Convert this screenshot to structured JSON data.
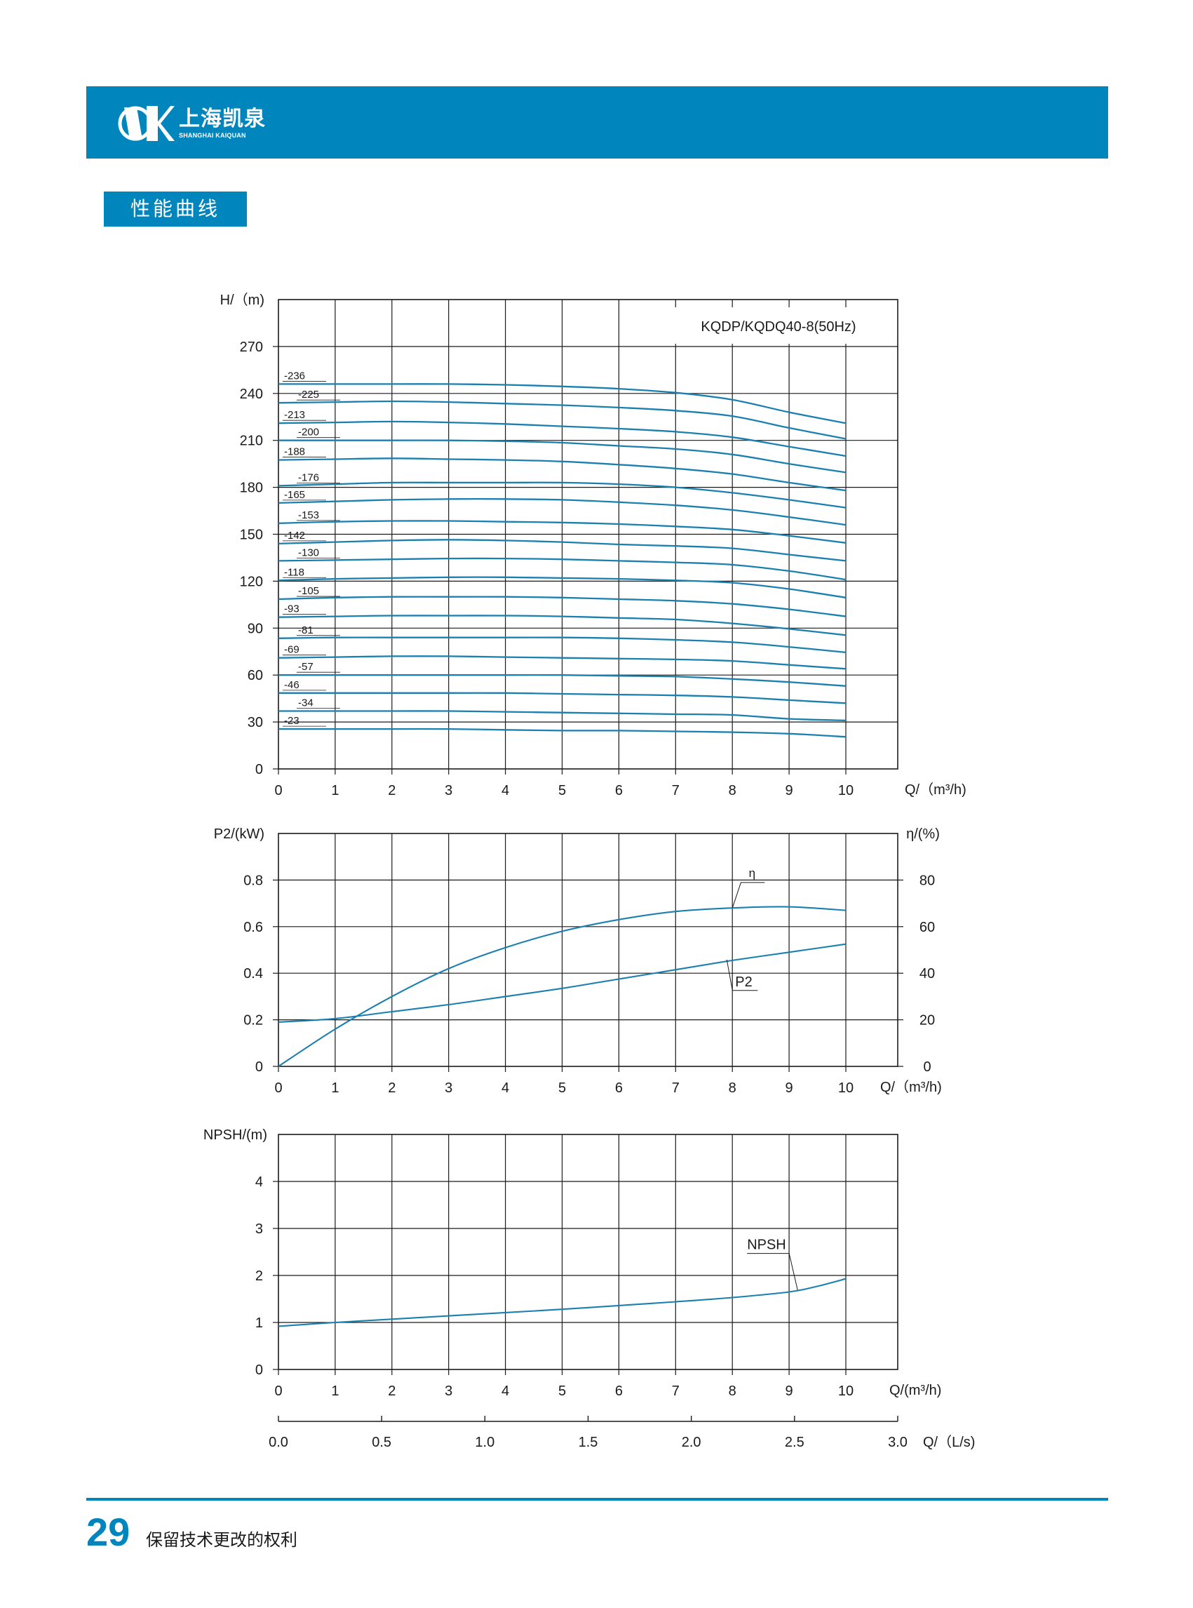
{
  "header": {
    "brand_cn": "上海凯泉",
    "brand_en": "SHANGHAI KAIQUAN",
    "bar_color": "#0085bd",
    "logo_icon": "kaiquan-logo-icon"
  },
  "section": {
    "title": "性能曲线"
  },
  "footer": {
    "page_number": "29",
    "note": "保留技术更改的权利"
  },
  "colors": {
    "accent": "#0085bd",
    "curve": "#1b7fb0",
    "grid": "#1a1a1a"
  },
  "chart_data": [
    {
      "id": "head",
      "type": "line",
      "title": "KQDP/KQDQ40-8(50Hz)",
      "ylabel": "H/（m)",
      "xlabel": "Q/（m³/h)",
      "xlim": [
        0,
        11
      ],
      "ylim": [
        0,
        300
      ],
      "xticks": [
        "0",
        "1",
        "2",
        "3",
        "4",
        "5",
        "6",
        "7",
        "8",
        "9",
        "10"
      ],
      "yticks": [
        "0",
        "30",
        "60",
        "90",
        "120",
        "150",
        "180",
        "210",
        "240",
        "270"
      ],
      "grid": true,
      "x": [
        0,
        1,
        2,
        3,
        4,
        5,
        6,
        7,
        8,
        9,
        10
      ],
      "series": [
        {
          "name": "-236",
          "values": [
            246,
            246,
            246,
            246,
            245.5,
            244.5,
            243,
            240.5,
            236,
            228,
            221
          ]
        },
        {
          "name": "-225",
          "values": [
            234,
            234.5,
            235,
            234.5,
            233.5,
            232.5,
            231,
            229,
            225.5,
            218,
            211
          ]
        },
        {
          "name": "-213",
          "values": [
            221,
            221.5,
            222,
            221.5,
            220.5,
            219,
            217.5,
            215.5,
            212,
            206,
            200
          ]
        },
        {
          "name": "-200",
          "values": [
            210,
            210,
            210,
            210,
            209.5,
            208.5,
            206.5,
            204.5,
            201,
            195,
            189.5
          ]
        },
        {
          "name": "-188",
          "values": [
            197.5,
            198,
            198.5,
            198,
            197.5,
            196.5,
            194.5,
            192,
            188.5,
            183,
            178
          ]
        },
        {
          "name": "-176",
          "values": [
            181,
            182,
            183,
            183,
            183,
            183,
            182,
            180,
            176.5,
            172,
            167
          ]
        },
        {
          "name": "-165",
          "values": [
            170,
            171,
            172,
            172.5,
            172.5,
            172,
            170.5,
            168.5,
            165.5,
            161,
            156
          ]
        },
        {
          "name": "-153",
          "values": [
            157,
            158,
            158.5,
            158.5,
            158,
            157.5,
            156.5,
            155,
            153,
            149,
            144.5
          ]
        },
        {
          "name": "-142",
          "values": [
            144,
            145,
            146,
            146.5,
            146,
            145,
            143.5,
            142.5,
            141,
            137,
            133
          ]
        },
        {
          "name": "-130",
          "values": [
            133,
            133.5,
            134,
            134.5,
            134.5,
            134,
            133,
            132,
            130.5,
            126.5,
            121
          ]
        },
        {
          "name": "-118",
          "values": [
            120.5,
            121.5,
            122,
            122.5,
            122.5,
            122,
            121.5,
            120.5,
            119,
            115,
            109.5
          ]
        },
        {
          "name": "-105",
          "values": [
            108.5,
            109.5,
            110,
            110,
            110,
            109.5,
            108.5,
            107.5,
            105.5,
            102,
            97.5
          ]
        },
        {
          "name": "-93",
          "values": [
            97,
            97.5,
            98,
            98,
            98,
            97.5,
            96.5,
            95.5,
            93,
            89.5,
            85.5
          ]
        },
        {
          "name": "-81",
          "values": [
            83.5,
            84,
            84,
            84,
            84,
            84,
            83.5,
            82.5,
            81,
            78,
            74.5
          ]
        },
        {
          "name": "-69",
          "values": [
            71,
            71.5,
            72,
            72,
            71.5,
            71,
            70.5,
            70,
            69,
            66.5,
            64
          ]
        },
        {
          "name": "-57",
          "values": [
            60,
            60,
            60,
            60,
            60,
            60,
            59.5,
            59,
            57.5,
            55.5,
            53
          ]
        },
        {
          "name": "-46",
          "values": [
            48.5,
            48.5,
            48.5,
            48.5,
            48.5,
            48,
            47.5,
            47,
            46,
            44,
            42
          ]
        },
        {
          "name": "-34",
          "values": [
            37,
            37,
            37,
            37,
            36.5,
            36,
            35.5,
            35,
            34.5,
            32,
            31
          ]
        },
        {
          "name": "-23",
          "values": [
            25.5,
            25.5,
            25.5,
            25.5,
            25,
            24.5,
            24.5,
            24,
            23.5,
            22.5,
            20.5
          ]
        }
      ]
    },
    {
      "id": "power",
      "type": "line",
      "ylabel": "P2/(kW)",
      "y2label": "η/(%)",
      "xlabel": "Q/（m³/h)",
      "xlim": [
        0,
        11
      ],
      "ylim": [
        0,
        1.0
      ],
      "y2lim": [
        0,
        100
      ],
      "xticks": [
        "0",
        "1",
        "2",
        "3",
        "4",
        "5",
        "6",
        "7",
        "8",
        "9",
        "10"
      ],
      "yticks": [
        "0",
        "0.2",
        "0.4",
        "0.6",
        "0.8"
      ],
      "y2ticks": [
        "0",
        "20",
        "40",
        "60",
        "80"
      ],
      "grid": true,
      "x": [
        0,
        1,
        2,
        3,
        4,
        5,
        6,
        7,
        8,
        9,
        10
      ],
      "series": [
        {
          "name": "P2",
          "axis": "left",
          "values": [
            0.19,
            0.205,
            0.235,
            0.265,
            0.3,
            0.335,
            0.375,
            0.415,
            0.455,
            0.49,
            0.525
          ]
        },
        {
          "name": "η",
          "axis": "right",
          "values": [
            0,
            16,
            30,
            42,
            51,
            58,
            63,
            66.5,
            68,
            68.5,
            67
          ]
        }
      ],
      "annotations": [
        {
          "text": "η",
          "series": "η",
          "at_x": 8.2
        },
        {
          "text": "P2",
          "series": "P2",
          "at_x": 8.1
        }
      ]
    },
    {
      "id": "npsh",
      "type": "line",
      "ylabel": "NPSH/(m)",
      "xlabel": "Q/(m³/h)",
      "x2label": "Q/（L/s)",
      "xlim": [
        0,
        11
      ],
      "ylim": [
        0,
        5
      ],
      "xticks": [
        "0",
        "1",
        "2",
        "3",
        "4",
        "5",
        "6",
        "7",
        "8",
        "9",
        "10"
      ],
      "yticks": [
        "0",
        "1",
        "2",
        "3",
        "4"
      ],
      "x2lim": [
        0,
        3.0
      ],
      "x2ticks": [
        "0.0",
        "0.5",
        "1.0",
        "1.5",
        "2.0",
        "2.5",
        "3.0"
      ],
      "grid": true,
      "x": [
        0,
        1,
        2,
        3,
        4,
        5,
        6,
        7,
        8,
        9,
        9.5,
        10
      ],
      "series": [
        {
          "name": "NPSH",
          "values": [
            0.92,
            1.0,
            1.07,
            1.14,
            1.21,
            1.28,
            1.36,
            1.44,
            1.53,
            1.65,
            1.77,
            1.93
          ]
        }
      ],
      "annotations": [
        {
          "text": "NPSH",
          "series": "NPSH",
          "at_x": 9.1
        }
      ]
    }
  ]
}
